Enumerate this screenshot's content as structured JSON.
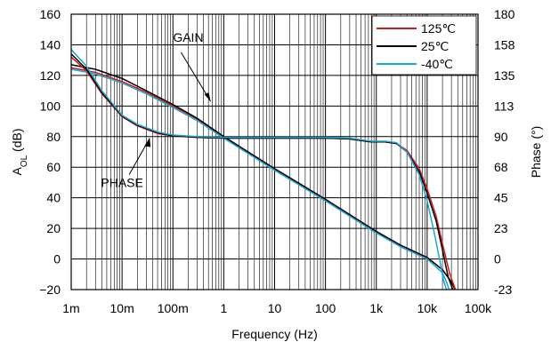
{
  "chart_data": {
    "type": "line",
    "x_scale": "log",
    "xlabel": "Frequency (Hz)",
    "ylabel_left_main": "A",
    "ylabel_left_sub": "OL",
    "ylabel_left_suffix": " (dB)",
    "ylabel_right": "Phase (°)",
    "xlim": [
      0.001,
      100000
    ],
    "ylim_left": [
      -20,
      160
    ],
    "ylim_right": [
      -23,
      180
    ],
    "x_ticks": [
      0.001,
      0.01,
      0.1,
      1,
      10,
      100,
      1000,
      10000,
      100000
    ],
    "x_tick_labels": [
      "1m",
      "10m",
      "100m",
      "1",
      "10",
      "100",
      "1k",
      "10k",
      "100k"
    ],
    "y_left_ticks": [
      -20,
      0,
      20,
      40,
      60,
      80,
      100,
      120,
      140,
      160
    ],
    "y_left_tick_labels": [
      "−20",
      "0",
      "20",
      "40",
      "60",
      "80",
      "100",
      "120",
      "140",
      "160"
    ],
    "y_right_tick_labels": [
      "-23",
      "0",
      "23",
      "45",
      "68",
      "90",
      "113",
      "135",
      "158",
      "180"
    ],
    "grid": true,
    "legend_position": "top-right",
    "annotations": [
      {
        "text": "GAIN",
        "near_x": 0.2,
        "near_y": 142
      },
      {
        "text": "PHASE",
        "near_x": 0.01,
        "near_y": 47
      }
    ],
    "series": [
      {
        "name": "125℃",
        "color": "#cc1a1a",
        "axis": "left",
        "kind": "gain",
        "x": [
          0.001,
          0.003,
          0.01,
          0.03,
          0.1,
          0.3,
          1,
          3,
          10,
          30,
          100,
          300,
          1000,
          3000,
          10000,
          20000,
          30000,
          35000
        ],
        "y": [
          125,
          122,
          116,
          109,
          100,
          91.5,
          80,
          70,
          59,
          49.5,
          39,
          29,
          18,
          9,
          1,
          -7,
          -15,
          -20
        ]
      },
      {
        "name": "25℃",
        "color": "#000000",
        "axis": "left",
        "kind": "gain",
        "x": [
          0.001,
          0.003,
          0.01,
          0.03,
          0.1,
          0.3,
          1,
          3,
          10,
          30,
          100,
          300,
          1000,
          3000,
          10000,
          20000,
          30000,
          36000
        ],
        "y": [
          127,
          124,
          118,
          110,
          101,
          92,
          80,
          70,
          59,
          49.5,
          39,
          29,
          18,
          9,
          1,
          -7,
          -15,
          -20
        ]
      },
      {
        "name": "-40℃",
        "color": "#1aa6d6",
        "axis": "left",
        "kind": "gain",
        "x": [
          0.001,
          0.003,
          0.01,
          0.03,
          0.1,
          0.3,
          1,
          3,
          10,
          30,
          100,
          300,
          1000,
          3000,
          10000,
          20000,
          24000,
          27000
        ],
        "y": [
          124,
          121,
          115,
          108,
          99,
          90.5,
          79,
          69,
          58,
          48.5,
          38,
          28,
          17,
          8,
          0,
          -9,
          -15,
          -20
        ]
      },
      {
        "name": "125℃",
        "color": "#cc1a1a",
        "axis": "left",
        "kind": "phase",
        "x": [
          0.001,
          0.002,
          0.004,
          0.01,
          0.02,
          0.05,
          0.1,
          0.3,
          1,
          10,
          100,
          300,
          800,
          1500,
          2500,
          4000,
          7000,
          10000,
          15000,
          20000,
          28000,
          36000
        ],
        "y": [
          132,
          123,
          108,
          93,
          87,
          82,
          80.5,
          79.5,
          79,
          79,
          79,
          78.5,
          76.5,
          76.5,
          75.5,
          71,
          59,
          46,
          28,
          10,
          -10,
          -20
        ]
      },
      {
        "name": "25℃",
        "color": "#000000",
        "axis": "left",
        "kind": "phase",
        "x": [
          0.001,
          0.002,
          0.004,
          0.01,
          0.02,
          0.05,
          0.1,
          0.3,
          1,
          10,
          100,
          300,
          800,
          1500,
          2500,
          4000,
          7000,
          10000,
          15000,
          20000,
          26000,
          32000
        ],
        "y": [
          134,
          124,
          109,
          93.5,
          87.5,
          82.5,
          80.5,
          79.5,
          79,
          79,
          79,
          78.5,
          76.5,
          76.5,
          75.5,
          70,
          57,
          43,
          25,
          6,
          -12,
          -20
        ]
      },
      {
        "name": "-40℃",
        "color": "#1aa6d6",
        "axis": "left",
        "kind": "phase",
        "x": [
          0.001,
          0.002,
          0.004,
          0.01,
          0.02,
          0.05,
          0.1,
          0.3,
          1,
          10,
          100,
          300,
          800,
          1500,
          2500,
          4000,
          7000,
          10000,
          14000,
          18000,
          21000,
          24000
        ],
        "y": [
          137,
          126,
          110,
          94,
          88,
          83,
          81,
          80,
          79.5,
          79.5,
          79.5,
          79,
          77,
          77,
          76,
          70,
          55,
          38,
          16,
          -2,
          -14,
          -20
        ]
      }
    ]
  }
}
